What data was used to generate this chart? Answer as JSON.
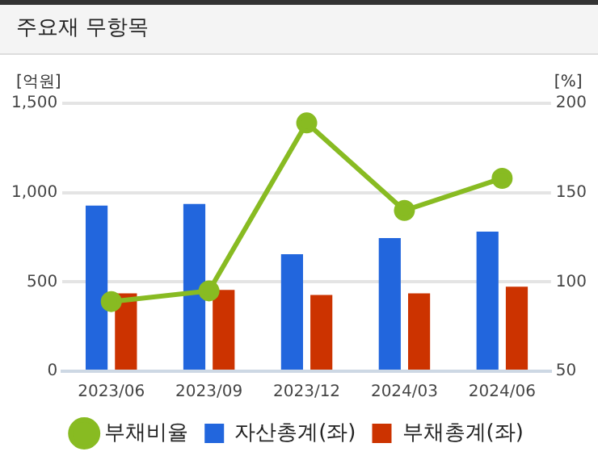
{
  "chart_data": {
    "type": "bar",
    "title": "주요재 무항목",
    "ylabel": "[억원]",
    "y2label": "[%]",
    "categories": [
      "2023/06",
      "2023/09",
      "2023/12",
      "2024/03",
      "2024/06"
    ],
    "series": [
      {
        "name": "자산총계(좌)",
        "color": "#2266dd",
        "values": [
          927,
          936,
          655,
          745,
          782
        ]
      },
      {
        "name": "부채총계(좌)",
        "color": "#cc3300",
        "values": [
          436,
          455,
          427,
          436,
          473
        ]
      },
      {
        "name": "부채비율",
        "type": "line",
        "axis": "y2",
        "color": "#88bb22",
        "values": [
          89,
          95,
          189,
          140,
          158
        ]
      }
    ],
    "ylim": [
      0,
      1500
    ],
    "yticks": [
      0,
      {
        "value": 500,
        "label": "500"
      },
      {
        "value": 1000,
        "label": "1,000"
      },
      {
        "value": 1500,
        "label": "1,500"
      }
    ],
    "y2lim": [
      50,
      200
    ],
    "y2ticks": [
      50,
      100,
      150,
      200
    ],
    "grid": "y",
    "legend": "bottom",
    "marker": "circle",
    "line_style": "solid"
  }
}
